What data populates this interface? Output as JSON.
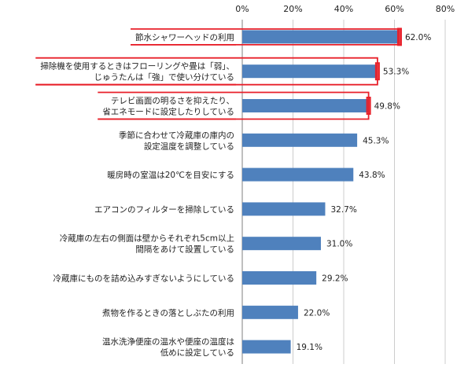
{
  "chart_data": {
    "type": "bar",
    "orientation": "horizontal",
    "categories": [
      [
        "節水シャワーヘッドの利用"
      ],
      [
        "掃除機を使用するときはフローリングや畳は「弱」、",
        "じゅうたんは「強」で使い分けている"
      ],
      [
        "テレビ画面の明るさを抑えたり、",
        "省エネモードに設定したりしている"
      ],
      [
        "季節に合わせて冷蔵庫の庫内の",
        "設定温度を調整している"
      ],
      [
        "暖房時の室温は20℃を目安にする"
      ],
      [
        "エアコンのフィルターを掃除している"
      ],
      [
        "冷蔵庫の左右の側面は壁からそれぞれ5cm以上",
        "間隔をあけて設置している"
      ],
      [
        "冷蔵庫にものを詰め込みすぎないようにしている"
      ],
      [
        "煮物を作るときの落としぶたの利用"
      ],
      [
        "温水洗浄便座の温水や便座の温度は",
        "低めに設定している"
      ]
    ],
    "values": [
      62.0,
      53.3,
      49.8,
      45.3,
      43.8,
      32.7,
      31.0,
      29.2,
      22.0,
      19.1
    ],
    "value_labels": [
      "62.0%",
      "53.3%",
      "49.8%",
      "45.3%",
      "43.8%",
      "32.7%",
      "31.0%",
      "29.2%",
      "22.0%",
      "19.1%"
    ],
    "highlighted": [
      true,
      true,
      true,
      false,
      false,
      false,
      false,
      false,
      false,
      false
    ],
    "xlim": [
      0,
      80
    ],
    "x_ticks": [
      "0%",
      "20%",
      "40%",
      "60%",
      "80%"
    ],
    "x_axis_position": "top",
    "grid": true,
    "title": "",
    "xlabel": "",
    "ylabel": "",
    "colors": {
      "bar": "#4F81BD",
      "highlight": "#E8202A",
      "grid": "#CCCCCC",
      "axis": "#7F7F7F"
    }
  }
}
